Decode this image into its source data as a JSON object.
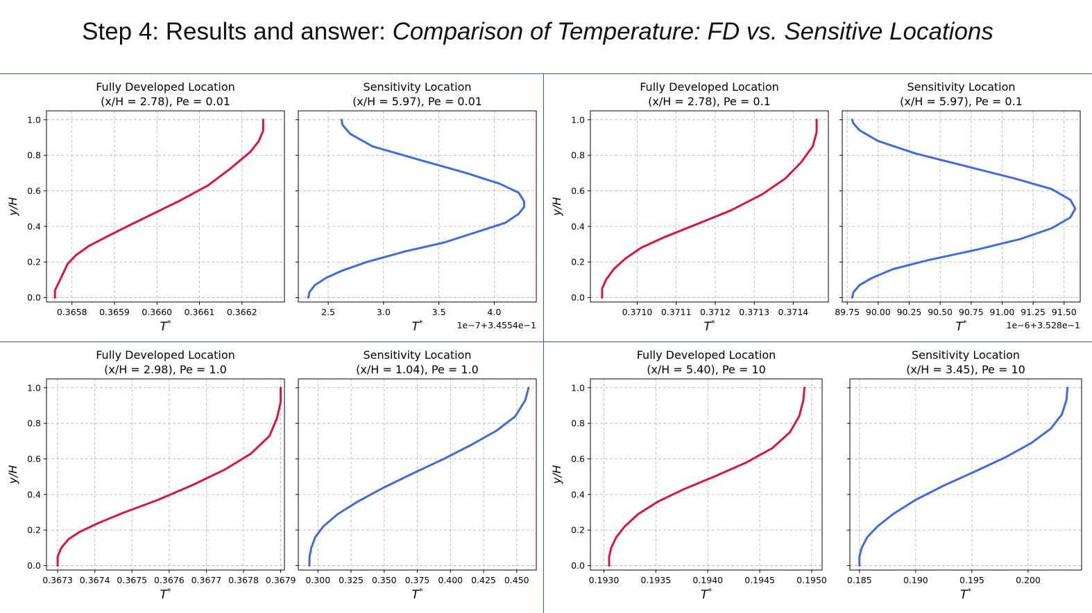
{
  "slide": {
    "title_plain": "Step 4: Results and answer: ",
    "title_italic": "Comparison of Temperature: FD vs. Sensitive Locations"
  },
  "axis_labels": {
    "y": "y/H",
    "x": "T",
    "x_sup": "*"
  },
  "colors": {
    "fd_curve": "#dc143c",
    "sensitivity_curve": "#4169e1",
    "grid": "#b0b0b0",
    "divider": "#2f5fa8"
  },
  "chart_data": [
    {
      "type": "line",
      "title": "Fully Developed Location\n(x/H = 2.78), Pe = 0.01",
      "xlabel": "T*",
      "ylabel": "y/H",
      "xlim": [
        0.36574,
        0.3663
      ],
      "ylim": [
        -0.025,
        1.05
      ],
      "xticks": [
        0.3658,
        0.3659,
        0.366,
        0.3661,
        0.3662
      ],
      "xtick_labels": [
        "0.3658",
        "0.3659",
        "0.3660",
        "0.3661",
        "0.3662"
      ],
      "yticks": [
        0.0,
        0.2,
        0.4,
        0.6,
        0.8,
        1.0
      ],
      "ytick_labels": [
        "0.0",
        "0.2",
        "0.4",
        "0.6",
        "0.8",
        "1.0"
      ],
      "offset_label": "",
      "grid": true,
      "series": [
        {
          "color": "#dc143c",
          "x": [
            0.36576,
            0.36576,
            0.36577,
            0.36578,
            0.36579,
            0.36581,
            0.36584,
            0.36588,
            0.36593,
            0.36599,
            0.36605,
            0.36612,
            0.36617,
            0.36622,
            0.36624,
            0.36625,
            0.36625
          ],
          "y": [
            0.0,
            0.04,
            0.09,
            0.14,
            0.19,
            0.24,
            0.29,
            0.34,
            0.4,
            0.47,
            0.54,
            0.63,
            0.72,
            0.82,
            0.88,
            0.94,
            1.0
          ]
        }
      ]
    },
    {
      "type": "line",
      "title": "Sensitivity Location\n(x/H = 5.97), Pe = 0.01",
      "xlabel": "T*",
      "ylabel": "",
      "xlim": [
        2.23,
        4.38
      ],
      "ylim": [
        -0.025,
        1.05
      ],
      "xticks": [
        2.5,
        3.0,
        3.5,
        4.0
      ],
      "xtick_labels": [
        "2.5",
        "3.0",
        "3.5",
        "4.0"
      ],
      "yticks": [
        0.0,
        0.2,
        0.4,
        0.6,
        0.8,
        1.0
      ],
      "ytick_labels": [
        "",
        "",
        "",
        "",
        "",
        ""
      ],
      "offset_label": "1e−7+3.4554e−1",
      "grid": true,
      "series": [
        {
          "color": "#4169e1",
          "x": [
            2.32,
            2.33,
            2.38,
            2.48,
            2.62,
            2.85,
            3.2,
            3.55,
            3.85,
            4.1,
            4.22,
            4.27,
            4.27,
            4.22,
            4.05,
            3.75,
            3.35,
            2.9,
            2.7,
            2.63,
            2.62
          ],
          "y": [
            0.0,
            0.03,
            0.07,
            0.11,
            0.15,
            0.2,
            0.26,
            0.31,
            0.37,
            0.42,
            0.47,
            0.51,
            0.54,
            0.59,
            0.64,
            0.7,
            0.77,
            0.85,
            0.92,
            0.97,
            1.0
          ]
        }
      ]
    },
    {
      "type": "line",
      "title": "Fully Developed Location\n(x/H = 2.78), Pe = 0.1",
      "xlabel": "T*",
      "ylabel": "y/H",
      "xlim": [
        0.37088,
        0.37149
      ],
      "ylim": [
        -0.025,
        1.05
      ],
      "xticks": [
        0.371,
        0.3711,
        0.3712,
        0.3713,
        0.3714
      ],
      "xtick_labels": [
        "0.3710",
        "0.3711",
        "0.3712",
        "0.3713",
        "0.3714"
      ],
      "yticks": [
        0.0,
        0.2,
        0.4,
        0.6,
        0.8,
        1.0
      ],
      "ytick_labels": [
        "0.0",
        "0.2",
        "0.4",
        "0.6",
        "0.8",
        "1.0"
      ],
      "offset_label": "",
      "grid": true,
      "series": [
        {
          "color": "#dc143c",
          "x": [
            0.37091,
            0.37091,
            0.37092,
            0.37094,
            0.37097,
            0.37101,
            0.37107,
            0.37115,
            0.37124,
            0.37132,
            0.37138,
            0.37142,
            0.37145,
            0.37146,
            0.37146
          ],
          "y": [
            0.0,
            0.05,
            0.1,
            0.16,
            0.22,
            0.28,
            0.34,
            0.41,
            0.49,
            0.58,
            0.67,
            0.76,
            0.85,
            0.93,
            1.0
          ]
        }
      ]
    },
    {
      "type": "line",
      "title": "Sensitivity Location\n(x/H = 5.97), Pe = 0.1",
      "xlabel": "T*",
      "ylabel": "",
      "xlim": [
        89.71,
        91.63
      ],
      "ylim": [
        -0.025,
        1.05
      ],
      "xticks": [
        89.75,
        90.0,
        90.25,
        90.5,
        90.75,
        91.0,
        91.25,
        91.5
      ],
      "xtick_labels": [
        "89.75",
        "90.00",
        "90.25",
        "90.50",
        "90.75",
        "91.00",
        "91.25",
        "91.50"
      ],
      "yticks": [
        0.0,
        0.2,
        0.4,
        0.6,
        0.8,
        1.0
      ],
      "ytick_labels": [
        "",
        "",
        "",
        "",
        "",
        ""
      ],
      "offset_label": "1e−6+3.528e−1",
      "grid": true,
      "series": [
        {
          "color": "#4169e1",
          "x": [
            89.79,
            89.8,
            89.85,
            89.95,
            90.12,
            90.4,
            90.8,
            91.15,
            91.4,
            91.55,
            91.59,
            91.55,
            91.4,
            91.1,
            90.7,
            90.3,
            90.0,
            89.85,
            89.8,
            89.79
          ],
          "y": [
            0.0,
            0.03,
            0.07,
            0.11,
            0.16,
            0.21,
            0.27,
            0.33,
            0.39,
            0.45,
            0.5,
            0.55,
            0.61,
            0.67,
            0.74,
            0.81,
            0.88,
            0.94,
            0.98,
            1.0
          ]
        }
      ]
    },
    {
      "type": "line",
      "title": "Fully Developed Location\n(x/H = 2.98), Pe = 1.0",
      "xlabel": "T*",
      "ylabel": "y/H",
      "xlim": [
        0.36727,
        0.36791
      ],
      "ylim": [
        -0.025,
        1.05
      ],
      "xticks": [
        0.3673,
        0.3674,
        0.3675,
        0.3676,
        0.3677,
        0.3678,
        0.3679
      ],
      "xtick_labels": [
        "0.3673",
        "0.3674",
        "0.3675",
        "0.3676",
        "0.3677",
        "0.3678",
        "0.3679"
      ],
      "yticks": [
        0.0,
        0.2,
        0.4,
        0.6,
        0.8,
        1.0
      ],
      "ytick_labels": [
        "0.0",
        "0.2",
        "0.4",
        "0.6",
        "0.8",
        "1.0"
      ],
      "offset_label": "",
      "grid": true,
      "series": [
        {
          "color": "#dc143c",
          "x": [
            0.3673,
            0.3673,
            0.36731,
            0.36733,
            0.36736,
            0.36741,
            0.36748,
            0.36757,
            0.36766,
            0.36775,
            0.36782,
            0.36787,
            0.36789,
            0.3679,
            0.3679
          ],
          "y": [
            0.0,
            0.05,
            0.1,
            0.15,
            0.19,
            0.24,
            0.3,
            0.37,
            0.45,
            0.54,
            0.63,
            0.73,
            0.83,
            0.92,
            1.0
          ]
        }
      ]
    },
    {
      "type": "line",
      "title": "Sensitivity Location\n(x/H = 1.04), Pe = 1.0",
      "xlabel": "T*",
      "ylabel": "",
      "xlim": [
        0.2852,
        0.4648
      ],
      "ylim": [
        -0.025,
        1.05
      ],
      "xticks": [
        0.3,
        0.325,
        0.35,
        0.375,
        0.4,
        0.425,
        0.45
      ],
      "xtick_labels": [
        "0.300",
        "0.325",
        "0.350",
        "0.375",
        "0.400",
        "0.425",
        "0.450"
      ],
      "yticks": [
        0.0,
        0.2,
        0.4,
        0.6,
        0.8,
        1.0
      ],
      "ytick_labels": [
        "",
        "",
        "",
        "",
        "",
        ""
      ],
      "offset_label": "",
      "grid": true,
      "series": [
        {
          "color": "#4169e1",
          "x": [
            0.2935,
            0.2937,
            0.295,
            0.298,
            0.304,
            0.315,
            0.33,
            0.35,
            0.372,
            0.395,
            0.416,
            0.435,
            0.449,
            0.4565,
            0.459
          ],
          "y": [
            0.0,
            0.05,
            0.1,
            0.16,
            0.22,
            0.29,
            0.36,
            0.44,
            0.52,
            0.6,
            0.68,
            0.76,
            0.84,
            0.93,
            1.0
          ]
        }
      ]
    },
    {
      "type": "line",
      "title": "Fully Developed Location\n(x/H = 5.40), Pe = 10",
      "xlabel": "T*",
      "ylabel": "y/H",
      "xlim": [
        0.19287,
        0.1951
      ],
      "ylim": [
        -0.025,
        1.05
      ],
      "xticks": [
        0.193,
        0.1935,
        0.194,
        0.1945,
        0.195
      ],
      "xtick_labels": [
        "0.1930",
        "0.1935",
        "0.1940",
        "0.1945",
        "0.1950"
      ],
      "yticks": [
        0.0,
        0.2,
        0.4,
        0.6,
        0.8,
        1.0
      ],
      "ytick_labels": [
        "0.0",
        "0.2",
        "0.4",
        "0.6",
        "0.8",
        "1.0"
      ],
      "offset_label": "",
      "grid": true,
      "series": [
        {
          "color": "#dc143c",
          "x": [
            0.19305,
            0.19305,
            0.19307,
            0.19312,
            0.1932,
            0.19333,
            0.19352,
            0.19377,
            0.19406,
            0.19437,
            0.19462,
            0.19479,
            0.19488,
            0.19492,
            0.19493
          ],
          "y": [
            0.0,
            0.05,
            0.1,
            0.16,
            0.22,
            0.29,
            0.36,
            0.43,
            0.5,
            0.58,
            0.66,
            0.75,
            0.84,
            0.93,
            1.0
          ]
        }
      ]
    },
    {
      "type": "line",
      "title": "Sensitivity Location\n(x/H = 3.45), Pe = 10",
      "xlabel": "T*",
      "ylabel": "",
      "xlim": [
        0.18415,
        0.20475
      ],
      "ylim": [
        -0.025,
        1.05
      ],
      "xticks": [
        0.185,
        0.19,
        0.195,
        0.2
      ],
      "xtick_labels": [
        "0.185",
        "0.190",
        "0.195",
        "0.200"
      ],
      "yticks": [
        0.0,
        0.2,
        0.4,
        0.6,
        0.8,
        1.0
      ],
      "ytick_labels": [
        "",
        "",
        "",
        "",
        "",
        ""
      ],
      "offset_label": "",
      "grid": true,
      "series": [
        {
          "color": "#4169e1",
          "x": [
            0.185,
            0.185,
            0.1852,
            0.1857,
            0.1866,
            0.188,
            0.19,
            0.1925,
            0.1953,
            0.198,
            0.2003,
            0.202,
            0.203,
            0.2034,
            0.2035
          ],
          "y": [
            0.0,
            0.05,
            0.1,
            0.16,
            0.22,
            0.29,
            0.37,
            0.45,
            0.53,
            0.61,
            0.69,
            0.77,
            0.85,
            0.93,
            1.0
          ]
        }
      ]
    }
  ]
}
